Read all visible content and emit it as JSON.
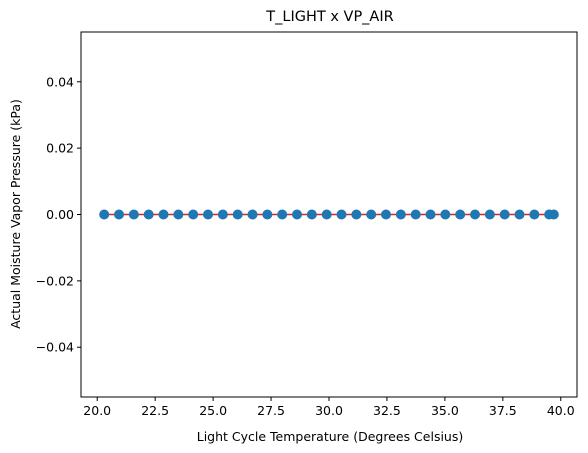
{
  "chart_data": {
    "type": "scatter",
    "title": "T_LIGHT x VP_AIR",
    "xlabel": "Light Cycle Temperature (Degrees Celsius)",
    "ylabel": "Actual Moisture Vapor Pressure (kPa)",
    "xlim": [
      19.3,
      40.7
    ],
    "ylim": [
      -0.055,
      0.055
    ],
    "x_ticks": [
      {
        "value": 20.0,
        "label": "20.0"
      },
      {
        "value": 22.5,
        "label": "22.5"
      },
      {
        "value": 25.0,
        "label": "25.0"
      },
      {
        "value": 27.5,
        "label": "27.5"
      },
      {
        "value": 30.0,
        "label": "30.0"
      },
      {
        "value": 32.5,
        "label": "32.5"
      },
      {
        "value": 35.0,
        "label": "35.0"
      },
      {
        "value": 37.5,
        "label": "37.5"
      },
      {
        "value": 40.0,
        "label": "40.0"
      }
    ],
    "y_ticks": [
      {
        "value": -0.04,
        "label": "−0.04"
      },
      {
        "value": -0.02,
        "label": "−0.02"
      },
      {
        "value": 0.0,
        "label": "0.00"
      },
      {
        "value": 0.02,
        "label": "0.02"
      },
      {
        "value": 0.04,
        "label": "0.04"
      }
    ],
    "points": {
      "x": [
        20.3,
        20.94,
        21.58,
        22.22,
        22.86,
        23.5,
        24.14,
        24.78,
        25.42,
        26.06,
        26.7,
        27.34,
        27.98,
        28.62,
        29.26,
        29.9,
        30.54,
        31.18,
        31.82,
        32.46,
        33.1,
        33.74,
        34.38,
        35.02,
        35.66,
        36.3,
        36.94,
        37.58,
        38.22,
        38.86,
        39.5,
        39.7
      ],
      "y": [
        0,
        0,
        0,
        0,
        0,
        0,
        0,
        0,
        0,
        0,
        0,
        0,
        0,
        0,
        0,
        0,
        0,
        0,
        0,
        0,
        0,
        0,
        0,
        0,
        0,
        0,
        0,
        0,
        0,
        0,
        0,
        0
      ],
      "color": "#1f77b4"
    },
    "fit_line": {
      "x": [
        20.3,
        39.7
      ],
      "y": [
        0,
        0
      ],
      "color": "#d62728"
    },
    "grid": false
  }
}
